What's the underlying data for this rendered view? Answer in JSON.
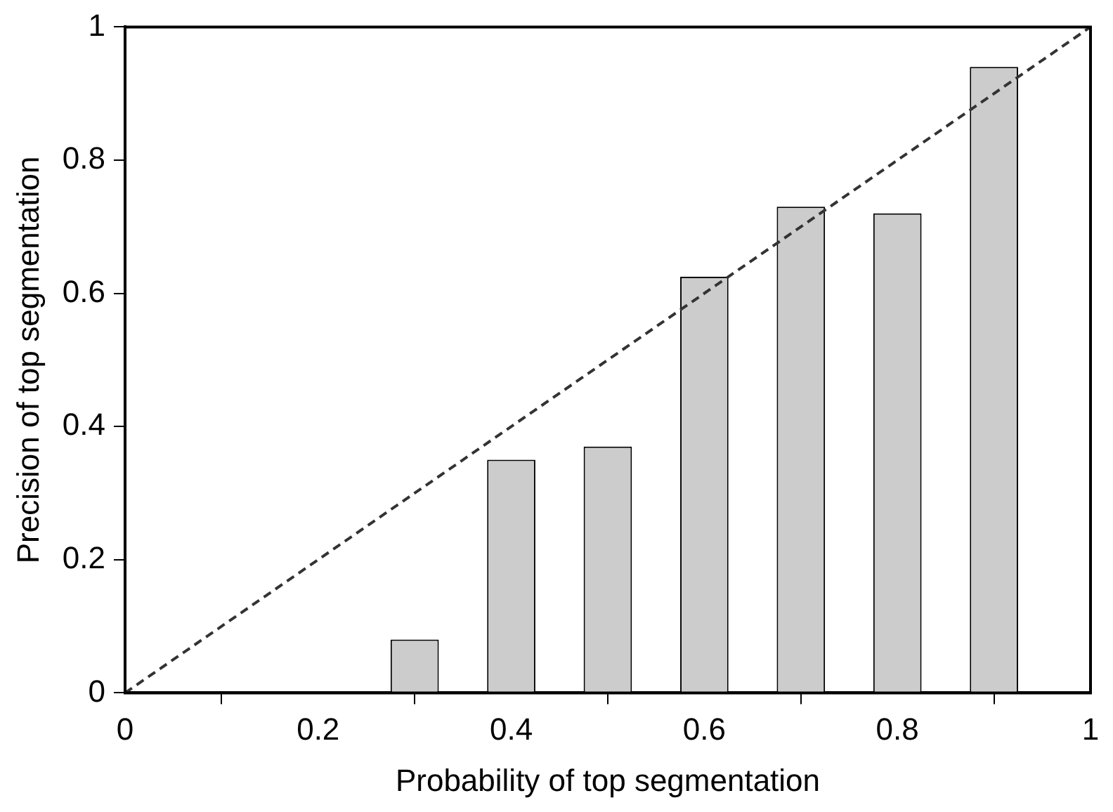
{
  "chart_data": {
    "type": "bar",
    "xlabel": "Probability of top segmentation",
    "ylabel": "Precision of top segmentation",
    "xlim": [
      0,
      1
    ],
    "xticks": [
      0,
      0.2,
      0.4,
      0.6,
      0.8,
      1
    ],
    "ylim": [
      0,
      1
    ],
    "yticks": [
      0,
      0.2,
      0.4,
      0.6,
      0.8,
      1
    ],
    "grid": false,
    "legend": false,
    "series": [
      {
        "color": "#cccccc",
        "x": [
          0.3,
          0.4,
          0.5,
          0.6,
          0.7,
          0.8,
          0.9
        ],
        "values": [
          0.08,
          0.35,
          0.37,
          0.625,
          0.73,
          0.72,
          0.94
        ]
      },
      {
        "type": "line",
        "color": "#333333",
        "line_style": "dashed",
        "marker": "none",
        "x": [
          0,
          1
        ],
        "values": [
          0,
          1
        ]
      }
    ]
  }
}
